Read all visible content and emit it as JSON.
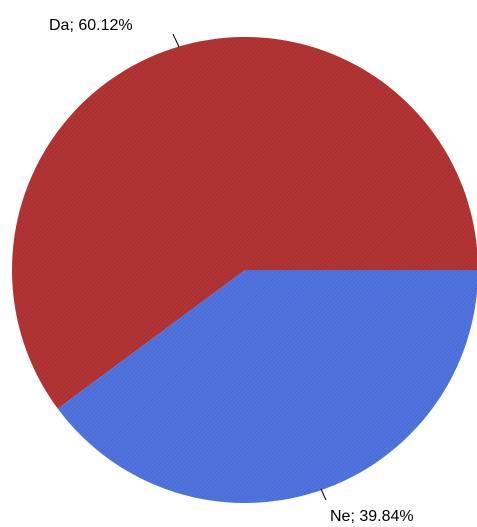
{
  "chart_data": {
    "type": "pie",
    "slices": [
      {
        "label": "Da; 60.12%",
        "category": "Da",
        "value": 60.12,
        "color": "#b23434"
      },
      {
        "label": "Ne; 39.84%",
        "category": "Ne",
        "value": 39.84,
        "color": "#5173dd"
      }
    ],
    "legend": "none"
  }
}
